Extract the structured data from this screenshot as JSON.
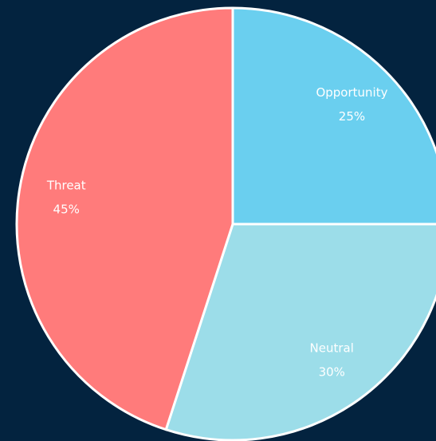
{
  "chart_data": {
    "type": "pie",
    "categories": [
      "Opportunity",
      "Neutral",
      "Threat"
    ],
    "values": [
      25,
      30,
      45
    ],
    "value_labels": [
      "25%",
      "30%",
      "45%"
    ],
    "colors": [
      "#6acfef",
      "#9cdde9",
      "#ff7b7b"
    ]
  }
}
